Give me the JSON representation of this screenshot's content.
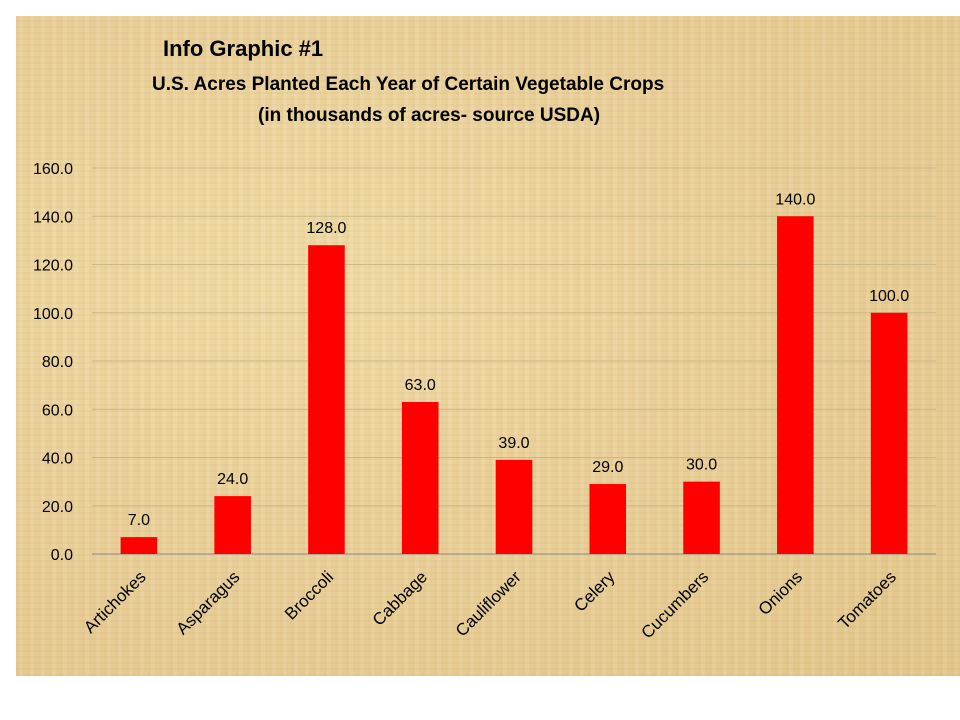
{
  "header": {
    "title": "Info Graphic #1",
    "subtitle_line1": "U.S. Acres Planted Each Year of Certain Vegetable Crops",
    "subtitle_line2": "(in thousands of acres- source USDA)"
  },
  "chart_data": {
    "type": "bar",
    "title": "U.S. Acres Planted Each Year of Certain Vegetable Crops",
    "subtitle": "(in thousands of acres- source USDA)",
    "categories": [
      "Artichokes",
      "Asparagus",
      "Broccoli",
      "Cabbage",
      "Cauliflower",
      "Celery",
      "Cucumbers",
      "Onions",
      "Tomatoes"
    ],
    "values": [
      7.0,
      24.0,
      128.0,
      63.0,
      39.0,
      29.0,
      30.0,
      140.0,
      100.0
    ],
    "value_labels": [
      "7.0",
      "24.0",
      "128.0",
      "63.0",
      "39.0",
      "29.0",
      "30.0",
      "140.0",
      "100.0"
    ],
    "y_ticks": [
      "0.0",
      "20.0",
      "40.0",
      "60.0",
      "80.0",
      "100.0",
      "120.0",
      "140.0",
      "160.0"
    ],
    "ylim": [
      0,
      160
    ],
    "xlabel": "",
    "ylabel": "",
    "grid": true,
    "legend": "none",
    "bar_color": "#ff0000",
    "grid_color": "#c8b88a"
  }
}
